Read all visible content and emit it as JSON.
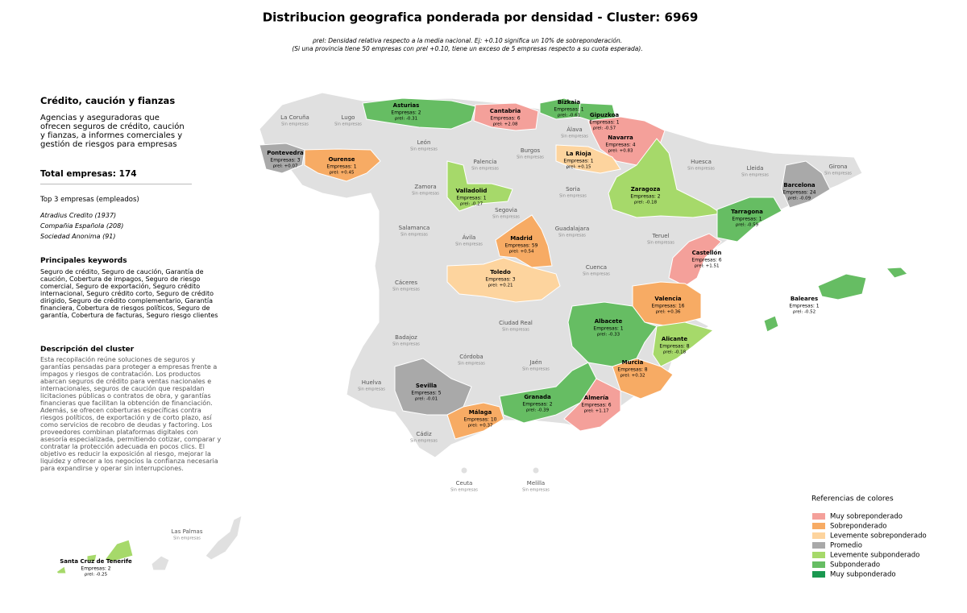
{
  "header": {
    "title": "Distribucion geografica ponderada por densidad - Cluster: 6969",
    "subtitle_lines": [
      "ρrel: Densidad relativa respecto a la media nacional. Ej: +0.10 significa un 10% de sobreponderación.",
      "(Si una provincia tiene 50 empresas con ρrel +0.10, tiene un exceso de 5 empresas respecto a su cuota esperada)."
    ]
  },
  "sidebar": {
    "cluster_name": "Crédito, caución y fianzas",
    "cluster_summary": "Agencias y aseguradoras que ofrecen seguros de crédito, caución y fianzas, a informes comerciales y gestión de riesgos para empresas",
    "total": "Total empresas: 174",
    "top_title": "Top 3 empresas (empleados)",
    "top_companies": [
      "Atradius Credito (1937)",
      "Compañia Española (208)",
      "Sociedad Anonima (91)"
    ],
    "keywords_title": "Principales keywords",
    "keywords": "Seguro de crédito, Seguro de caución, Garantía de caución, Cobertura de impagos, Seguro de riesgo comercial, Seguro de exportación, Seguro crédito internacional, Seguro crédito corto, Seguro de crédito dirigido, Seguro de crédito complementario, Garantía financiera, Cobertura de riesgos políticos, Seguro de garantía, Cobertura de facturas, Seguro riesgo clientes",
    "description_title": "Descripción del cluster",
    "description": "Esta recopilación reúne soluciones de seguros y garantías pensadas para proteger a empresas frente a impagos y riesgos de contratación. Los productos abarcan seguros de crédito para ventas nacionales e internacionales, seguros de caución que respaldan licitaciones públicas o contratos de obra, y garantías financieras que facilitan la obtención de financiación. Además, se ofrecen coberturas específicas contra riesgos políticos, de exportación y de corto plazo, así como servicios de recobro de deudas y factoring. Los proveedores combinan plataformas digitales con asesoría especializada, permitiendo cotizar, comparar y contratar la protección adecuada en pocos clics. El objetivo es reducir la exposición al riesgo, mejorar la liquidez y ofrecer a los negocios la confianza necesaria para expandirse y operar sin interrupciones."
  },
  "provinces": [
    {
      "name": "Asturias",
      "companies": "Empresas: 2",
      "rho": "ρrel: -0.31",
      "color": "#66bd63"
    },
    {
      "name": "Cantabria",
      "companies": "Empresas: 6",
      "rho": "ρrel: +2.08",
      "color": "#f4a09a"
    },
    {
      "name": "Bizkaia",
      "companies": "Empresas: 1",
      "rho": "ρrel: -0.61",
      "color": "#66bd63"
    },
    {
      "name": "Gipuzkoa",
      "companies": "Empresas: 1",
      "rho": "ρrel: -0.57",
      "color": "#66bd63"
    },
    {
      "name": "Navarra",
      "companies": "Empresas: 4",
      "rho": "ρrel: +0.83",
      "color": "#f4a09a"
    },
    {
      "name": "Pontevedra",
      "companies": "Empresas: 3",
      "rho": "ρrel: +0.07",
      "color": "#a9a9a9"
    },
    {
      "name": "Ourense",
      "companies": "Empresas: 1",
      "rho": "ρrel: +0.45",
      "color": "#f7ab64"
    },
    {
      "name": "La Rioja",
      "companies": "Empresas: 1",
      "rho": "ρrel: +0.15",
      "color": "#fdd49e"
    },
    {
      "name": "Valladolid",
      "companies": "Empresas: 1",
      "rho": "ρrel: -0.27",
      "color": "#a6d96a"
    },
    {
      "name": "Zaragoza",
      "companies": "Empresas: 2",
      "rho": "ρrel: -0.18",
      "color": "#a6d96a"
    },
    {
      "name": "Barcelona",
      "companies": "Empresas: 24",
      "rho": "ρrel: -0.09",
      "color": "#a9a9a9"
    },
    {
      "name": "Tarragona",
      "companies": "Empresas: 1",
      "rho": "ρrel: -0.59",
      "color": "#66bd63"
    },
    {
      "name": "Madrid",
      "companies": "Empresas: 59",
      "rho": "ρrel: +0.54",
      "color": "#f7ab64"
    },
    {
      "name": "Castellón",
      "companies": "Empresas: 6",
      "rho": "ρrel: +1.51",
      "color": "#f4a09a"
    },
    {
      "name": "Toledo",
      "companies": "Empresas: 3",
      "rho": "ρrel: +0.21",
      "color": "#fdd49e"
    },
    {
      "name": "Valencia",
      "companies": "Empresas: 16",
      "rho": "ρrel: +0.36",
      "color": "#f7ab64"
    },
    {
      "name": "Baleares",
      "companies": "Empresas: 1",
      "rho": "ρrel: -0.52",
      "color": "#66bd63"
    },
    {
      "name": "Albacete",
      "companies": "Empresas: 1",
      "rho": "ρrel: -0.33",
      "color": "#66bd63"
    },
    {
      "name": "Alicante",
      "companies": "Empresas: 8",
      "rho": "ρrel: -0.18",
      "color": "#a6d96a"
    },
    {
      "name": "Murcia",
      "companies": "Empresas: 8",
      "rho": "ρrel: +0.32",
      "color": "#f7ab64"
    },
    {
      "name": "Sevilla",
      "companies": "Empresas: 5",
      "rho": "ρrel: -0.01",
      "color": "#a9a9a9"
    },
    {
      "name": "Granada",
      "companies": "Empresas: 2",
      "rho": "ρrel: -0.39",
      "color": "#66bd63"
    },
    {
      "name": "Almería",
      "companies": "Empresas: 6",
      "rho": "ρrel: +1.17",
      "color": "#f4a09a"
    },
    {
      "name": "Málaga",
      "companies": "Empresas: 10",
      "rho": "ρrel: +0.37",
      "color": "#f7ab64"
    },
    {
      "name": "Santa Cruz de Tenerife",
      "companies": "Empresas: 2",
      "rho": "ρrel: -0.25",
      "color": "#a6d96a"
    },
    {
      "name": "La Coruña",
      "status": "Sin empresas"
    },
    {
      "name": "Lugo",
      "status": "Sin empresas"
    },
    {
      "name": "León",
      "status": "Sin empresas"
    },
    {
      "name": "Palencia",
      "status": "Sin empresas"
    },
    {
      "name": "Burgos",
      "status": "Sin empresas"
    },
    {
      "name": "Álava",
      "status": "Sin empresas"
    },
    {
      "name": "Soria",
      "status": "Sin empresas"
    },
    {
      "name": "Huesca",
      "status": "Sin empresas"
    },
    {
      "name": "Lleida",
      "status": "Sin empresas"
    },
    {
      "name": "Girona",
      "status": "Sin empresas"
    },
    {
      "name": "Zamora",
      "status": "Sin empresas"
    },
    {
      "name": "Segovia",
      "status": "Sin empresas"
    },
    {
      "name": "Salamanca",
      "status": "Sin empresas"
    },
    {
      "name": "Ávila",
      "status": "Sin empresas"
    },
    {
      "name": "Guadalajara",
      "status": "Sin empresas"
    },
    {
      "name": "Teruel",
      "status": "Sin empresas"
    },
    {
      "name": "Cáceres",
      "status": "Sin empresas"
    },
    {
      "name": "Cuenca",
      "status": "Sin empresas"
    },
    {
      "name": "Ciudad Real",
      "status": "Sin empresas"
    },
    {
      "name": "Badajoz",
      "status": "Sin empresas"
    },
    {
      "name": "Córdoba",
      "status": "Sin empresas"
    },
    {
      "name": "Jaén",
      "status": "Sin empresas"
    },
    {
      "name": "Huelva",
      "status": "Sin empresas"
    },
    {
      "name": "Cádiz",
      "status": "Sin empresas"
    },
    {
      "name": "Ceuta",
      "status": "Sin empresas"
    },
    {
      "name": "Melilla",
      "status": "Sin empresas"
    },
    {
      "name": "Las Palmas",
      "status": "Sin empresas"
    }
  ],
  "legend": {
    "title": "Referencias de colores",
    "items": [
      {
        "name": "Muy sobreponderado",
        "color": "#f4a09a"
      },
      {
        "name": "Sobreponderado",
        "color": "#f7ab64"
      },
      {
        "name": "Levemente sobreponderado",
        "color": "#fdd49e"
      },
      {
        "name": "Promedio",
        "color": "#a9a9a9"
      },
      {
        "name": "Levemente subponderado",
        "color": "#a6d96a"
      },
      {
        "name": "Subponderado",
        "color": "#66bd63"
      },
      {
        "name": "Muy subponderado",
        "color": "#1a9850"
      }
    ]
  }
}
